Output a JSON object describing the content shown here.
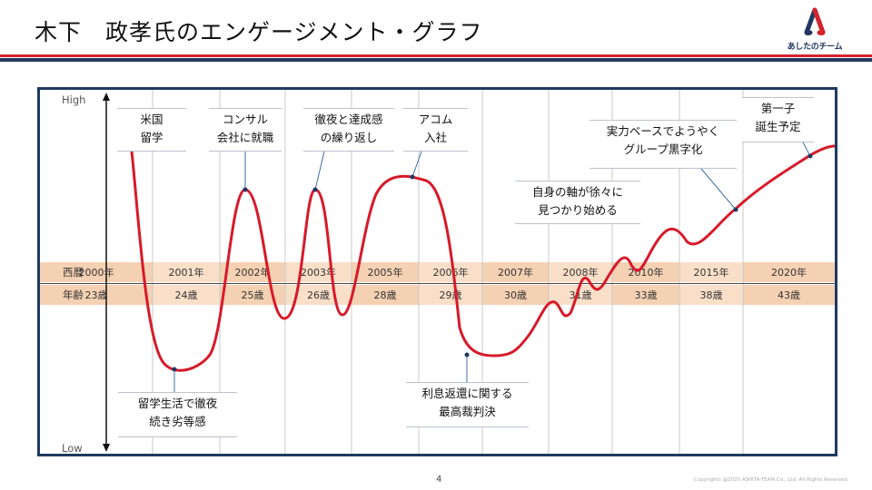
{
  "title": "木下　政孝氏のエンゲージメント・グラフ",
  "logo": {
    "text": "あしたのチーム"
  },
  "chart_data": {
    "type": "line",
    "ylabel_high": "High",
    "ylabel_low": "Low",
    "row_labels": {
      "year": "西暦",
      "age": "年齢"
    },
    "columns": [
      {
        "year": "2000年",
        "age": "23歳"
      },
      {
        "year": "2001年",
        "age": "24歳"
      },
      {
        "year": "2002年",
        "age": "25歳"
      },
      {
        "year": "2003年",
        "age": "26歳"
      },
      {
        "year": "2005年",
        "age": "28歳"
      },
      {
        "year": "2006年",
        "age": "29歳"
      },
      {
        "year": "2007年",
        "age": "30歳"
      },
      {
        "year": "2008年",
        "age": "31歳"
      },
      {
        "year": "2010年",
        "age": "33歳"
      },
      {
        "year": "2015年",
        "age": "38歳"
      },
      {
        "year": "2020年",
        "age": "43歳"
      }
    ],
    "line_color": "#d7192a",
    "events": [
      {
        "lines": [
          "米国",
          "留学"
        ]
      },
      {
        "lines": [
          "留学生活で徹夜",
          "続き劣等感"
        ]
      },
      {
        "lines": [
          "コンサル",
          "会社に就職"
        ]
      },
      {
        "lines": [
          "徹夜と達成感",
          "の繰り返し"
        ]
      },
      {
        "lines": [
          "アコム",
          "入社"
        ]
      },
      {
        "lines": [
          "利息返還に関する",
          "最高裁判決"
        ]
      },
      {
        "lines": [
          "自身の軸が徐々に",
          "見つかり始める"
        ]
      },
      {
        "lines": [
          "実力ベースでようやく",
          "グループ黒字化"
        ]
      },
      {
        "lines": [
          "第一子",
          "誕生予定"
        ]
      }
    ]
  },
  "footer": {
    "page": "4",
    "copyright": "Copyrights @2020 ASHITA-TEAM Co., Ltd. All Rights Reserved."
  }
}
